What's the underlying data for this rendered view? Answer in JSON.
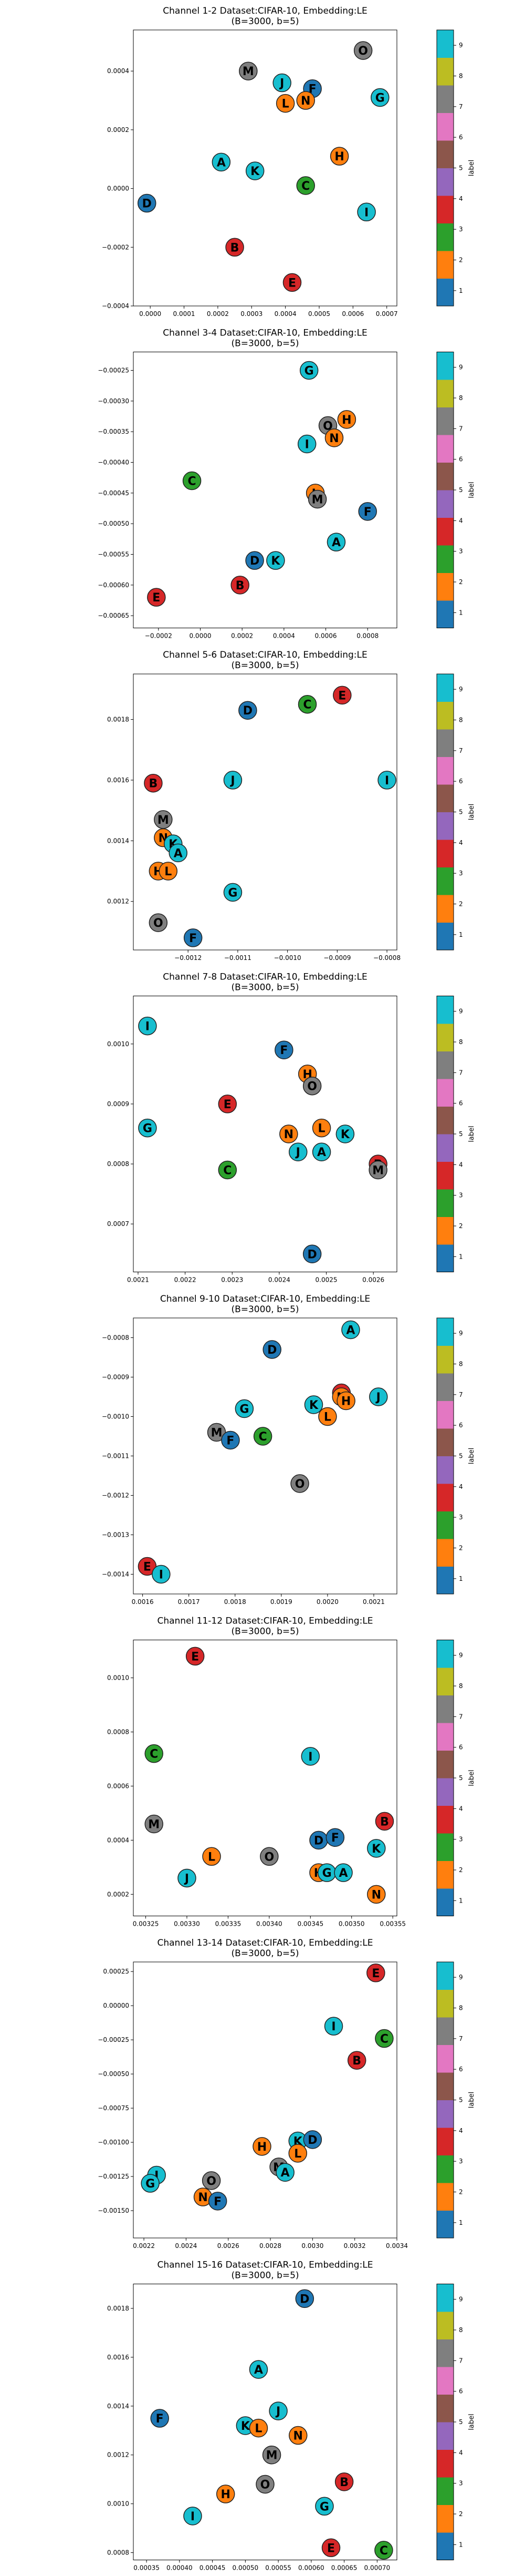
{
  "colors": {
    "label_colors": [
      "#1f77b4",
      "#ff7f0e",
      "#2ca02c",
      "#d62728",
      "#9467bd",
      "#8c564b",
      "#e377c2",
      "#7f7f7f",
      "#bcbd22",
      "#17becf"
    ],
    "point_colors": {
      "A": "#17becf",
      "B": "#d62728",
      "D": "#1f77b4",
      "E": "#d62728",
      "F": "#1f77b4",
      "G": "#17becf",
      "H": "#ff7f0e",
      "I": "#17becf",
      "J": "#17becf",
      "K": "#17becf",
      "L": "#ff7f0e",
      "M": "#7f7f7f",
      "N": "#ff7f0e",
      "O": "#7f7f7f",
      "C": "#2ca02c"
    }
  },
  "colorbar": {
    "label": "label",
    "ticks": [
      1,
      2,
      3,
      4,
      5,
      6,
      7,
      8,
      9
    ]
  },
  "chart_data": [
    {
      "type": "scatter",
      "title": "Channel 1-2 Dataset:CIFAR-10, Embedding:LE",
      "subtitle": "(B=3000, b=5)",
      "xlim": [
        -5e-05,
        0.00073
      ],
      "ylim": [
        -0.0004,
        0.00054
      ],
      "xticks": [
        0,
        0.0001,
        0.0002,
        0.0003,
        0.0004,
        0.0005,
        0.0006,
        0.0007
      ],
      "xtick_labels": [
        "0.0000",
        "0.0001",
        "0.0002",
        "0.0003",
        "0.0004",
        "0.0005",
        "0.0006",
        "0.0007"
      ],
      "yticks": [
        -0.0004,
        -0.0002,
        0,
        0.0002,
        0.0004
      ],
      "ytick_labels": [
        "−0.0004",
        "−0.0002",
        "0.0000",
        "0.0002",
        "0.0004"
      ],
      "points": [
        {
          "label": "O",
          "x": 0.00063,
          "y": 0.00047
        },
        {
          "label": "M",
          "x": 0.00029,
          "y": 0.0004
        },
        {
          "label": "J",
          "x": 0.00039,
          "y": 0.00036
        },
        {
          "label": "F",
          "x": 0.00048,
          "y": 0.00034
        },
        {
          "label": "G",
          "x": 0.00068,
          "y": 0.00031
        },
        {
          "label": "L",
          "x": 0.0004,
          "y": 0.00029
        },
        {
          "label": "N",
          "x": 0.00046,
          "y": 0.0003
        },
        {
          "label": "H",
          "x": 0.00056,
          "y": 0.00011
        },
        {
          "label": "A",
          "x": 0.00021,
          "y": 9e-05
        },
        {
          "label": "K",
          "x": 0.00031,
          "y": 6e-05
        },
        {
          "label": "C",
          "x": 0.00046,
          "y": 1e-05
        },
        {
          "label": "D",
          "x": -1e-05,
          "y": -5e-05
        },
        {
          "label": "I",
          "x": 0.00064,
          "y": -8e-05
        },
        {
          "label": "B",
          "x": 0.00025,
          "y": -0.0002
        },
        {
          "label": "E",
          "x": 0.00042,
          "y": -0.00032
        }
      ]
    },
    {
      "type": "scatter",
      "title": "Channel 3-4 Dataset:CIFAR-10, Embedding:LE",
      "subtitle": "(B=3000, b=5)",
      "xlim": [
        -0.00032,
        0.00094
      ],
      "ylim": [
        -0.00067,
        -0.00022
      ],
      "xticks": [
        -0.0002,
        0,
        0.0002,
        0.0004,
        0.0006,
        0.0008
      ],
      "xtick_labels": [
        "−0.0002",
        "0.0000",
        "0.0002",
        "0.0004",
        "0.0006",
        "0.0008"
      ],
      "yticks": [
        -0.00065,
        -0.0006,
        -0.00055,
        -0.0005,
        -0.00045,
        -0.0004,
        -0.00035,
        -0.0003,
        -0.00025
      ],
      "ytick_labels": [
        "−0.00065",
        "−0.00060",
        "−0.00055",
        "−0.00050",
        "−0.00045",
        "−0.00040",
        "−0.00035",
        "−0.00030",
        "−0.00025"
      ],
      "points": [
        {
          "label": "G",
          "x": 0.00052,
          "y": -0.00025
        },
        {
          "label": "H",
          "x": 0.0007,
          "y": -0.00033
        },
        {
          "label": "O",
          "x": 0.00061,
          "y": -0.00034
        },
        {
          "label": "N",
          "x": 0.00064,
          "y": -0.00036
        },
        {
          "label": "I",
          "x": 0.00051,
          "y": -0.00037
        },
        {
          "label": "C",
          "x": -4e-05,
          "y": -0.00043
        },
        {
          "label": "L",
          "x": 0.00055,
          "y": -0.00045
        },
        {
          "label": "M",
          "x": 0.00056,
          "y": -0.00046
        },
        {
          "label": "F",
          "x": 0.0008,
          "y": -0.00048
        },
        {
          "label": "A",
          "x": 0.00065,
          "y": -0.00053
        },
        {
          "label": "D",
          "x": 0.00026,
          "y": -0.00056
        },
        {
          "label": "K",
          "x": 0.00036,
          "y": -0.00056
        },
        {
          "label": "B",
          "x": 0.00019,
          "y": -0.0006
        },
        {
          "label": "E",
          "x": -0.00021,
          "y": -0.00062
        }
      ]
    },
    {
      "type": "scatter",
      "title": "Channel 5-6 Dataset:CIFAR-10, Embedding:LE",
      "subtitle": "(B=3000, b=5)",
      "xlim": [
        -0.00131,
        -0.00078
      ],
      "ylim": [
        0.00104,
        0.00195
      ],
      "xticks": [
        -0.0012,
        -0.0011,
        -0.001,
        -0.0009,
        -0.0008
      ],
      "xtick_labels": [
        "−0.0012",
        "−0.0011",
        "−0.0010",
        "−0.0009",
        "−0.0008"
      ],
      "yticks": [
        0.0012,
        0.0014,
        0.0016,
        0.0018
      ],
      "ytick_labels": [
        "0.0012",
        "0.0014",
        "0.0016",
        "0.0018"
      ],
      "points": [
        {
          "label": "E",
          "x": -0.00089,
          "y": 0.00188
        },
        {
          "label": "C",
          "x": -0.00096,
          "y": 0.00185
        },
        {
          "label": "D",
          "x": -0.00108,
          "y": 0.00183
        },
        {
          "label": "B",
          "x": -0.00127,
          "y": 0.00159
        },
        {
          "label": "J",
          "x": -0.00111,
          "y": 0.0016
        },
        {
          "label": "I",
          "x": -0.0008,
          "y": 0.0016
        },
        {
          "label": "M",
          "x": -0.00125,
          "y": 0.00147
        },
        {
          "label": "N",
          "x": -0.00125,
          "y": 0.00141
        },
        {
          "label": "K",
          "x": -0.00123,
          "y": 0.00139
        },
        {
          "label": "A",
          "x": -0.00122,
          "y": 0.00136
        },
        {
          "label": "H",
          "x": -0.00126,
          "y": 0.0013
        },
        {
          "label": "L",
          "x": -0.00124,
          "y": 0.0013
        },
        {
          "label": "G",
          "x": -0.00111,
          "y": 0.00123
        },
        {
          "label": "O",
          "x": -0.00126,
          "y": 0.00113
        },
        {
          "label": "F",
          "x": -0.00119,
          "y": 0.00108
        }
      ]
    },
    {
      "type": "scatter",
      "title": "Channel 7-8 Dataset:CIFAR-10, Embedding:LE",
      "subtitle": "(B=3000, b=5)",
      "xlim": [
        0.00209,
        0.00265
      ],
      "ylim": [
        0.00062,
        0.00108
      ],
      "xticks": [
        0.0021,
        0.0022,
        0.0023,
        0.0024,
        0.0025,
        0.0026
      ],
      "xtick_labels": [
        "0.0021",
        "0.0022",
        "0.0023",
        "0.0024",
        "0.0025",
        "0.0026"
      ],
      "yticks": [
        0.0007,
        0.0008,
        0.0009,
        0.001
      ],
      "ytick_labels": [
        "0.0007",
        "0.0008",
        "0.0009",
        "0.0010"
      ],
      "points": [
        {
          "label": "I",
          "x": 0.00212,
          "y": 0.00103
        },
        {
          "label": "F",
          "x": 0.00241,
          "y": 0.00099
        },
        {
          "label": "H",
          "x": 0.00246,
          "y": 0.00095
        },
        {
          "label": "O",
          "x": 0.00247,
          "y": 0.00093
        },
        {
          "label": "E",
          "x": 0.00229,
          "y": 0.0009
        },
        {
          "label": "G",
          "x": 0.00212,
          "y": 0.00086
        },
        {
          "label": "N",
          "x": 0.00242,
          "y": 0.00085
        },
        {
          "label": "L",
          "x": 0.00249,
          "y": 0.00086
        },
        {
          "label": "K",
          "x": 0.00254,
          "y": 0.00085
        },
        {
          "label": "J",
          "x": 0.00244,
          "y": 0.00082
        },
        {
          "label": "A",
          "x": 0.00249,
          "y": 0.00082
        },
        {
          "label": "B",
          "x": 0.00261,
          "y": 0.0008
        },
        {
          "label": "M",
          "x": 0.00261,
          "y": 0.00079
        },
        {
          "label": "C",
          "x": 0.00229,
          "y": 0.00079
        },
        {
          "label": "D",
          "x": 0.00247,
          "y": 0.00065
        }
      ]
    },
    {
      "type": "scatter",
      "title": "Channel 9-10 Dataset:CIFAR-10, Embedding:LE",
      "subtitle": "(B=3000, b=5)",
      "xlim": [
        0.00158,
        0.00215
      ],
      "ylim": [
        -0.00145,
        -0.00075
      ],
      "xticks": [
        0.0016,
        0.0017,
        0.0018,
        0.0019,
        0.002,
        0.0021
      ],
      "xtick_labels": [
        "0.0016",
        "0.0017",
        "0.0018",
        "0.0019",
        "0.0020",
        "0.0021"
      ],
      "yticks": [
        -0.0014,
        -0.0013,
        -0.0012,
        -0.0011,
        -0.001,
        -0.0009,
        -0.0008
      ],
      "ytick_labels": [
        "−0.0014",
        "−0.0013",
        "−0.0012",
        "−0.0011",
        "−0.0010",
        "−0.0009",
        "−0.0008"
      ],
      "points": [
        {
          "label": "A",
          "x": 0.00205,
          "y": -0.00078
        },
        {
          "label": "D",
          "x": 0.00188,
          "y": -0.00083
        },
        {
          "label": "E",
          "x": 0.00203,
          "y": -0.00094
        },
        {
          "label": "N",
          "x": 0.00203,
          "y": -0.00095
        },
        {
          "label": "H",
          "x": 0.00204,
          "y": -0.00096
        },
        {
          "label": "J",
          "x": 0.00211,
          "y": -0.00095
        },
        {
          "label": "K",
          "x": 0.00197,
          "y": -0.00097
        },
        {
          "label": "G",
          "x": 0.00182,
          "y": -0.00098
        },
        {
          "label": "L",
          "x": 0.002,
          "y": -0.001
        },
        {
          "label": "M",
          "x": 0.00176,
          "y": -0.00104
        },
        {
          "label": "C",
          "x": 0.00186,
          "y": -0.00105
        },
        {
          "label": "F",
          "x": 0.00179,
          "y": -0.00106
        },
        {
          "label": "O",
          "x": 0.00194,
          "y": -0.00117
        },
        {
          "label": "E",
          "x": 0.00161,
          "y": -0.00138
        },
        {
          "label": "I",
          "x": 0.00164,
          "y": -0.0014
        }
      ]
    },
    {
      "type": "scatter",
      "title": "Channel 11-12 Dataset:CIFAR-10, Embedding:LE",
      "subtitle": "(B=3000, b=5)",
      "xlim": [
        0.003235,
        0.003555
      ],
      "ylim": [
        0.00012,
        0.00114
      ],
      "xticks": [
        0.00325,
        0.0033,
        0.00335,
        0.0034,
        0.00345,
        0.0035,
        0.00355
      ],
      "xtick_labels": [
        "0.00325",
        "0.00330",
        "0.00335",
        "0.00340",
        "0.00345",
        "0.00350",
        "0.00355"
      ],
      "yticks": [
        0.0002,
        0.0004,
        0.0006,
        0.0008,
        0.001
      ],
      "ytick_labels": [
        "0.0002",
        "0.0004",
        "0.0006",
        "0.0008",
        "0.0010"
      ],
      "points": [
        {
          "label": "E",
          "x": 0.00331,
          "y": 0.00108
        },
        {
          "label": "C",
          "x": 0.00326,
          "y": 0.00072
        },
        {
          "label": "I",
          "x": 0.00345,
          "y": 0.00071
        },
        {
          "label": "M",
          "x": 0.00326,
          "y": 0.00046
        },
        {
          "label": "B",
          "x": 0.00354,
          "y": 0.00047
        },
        {
          "label": "D",
          "x": 0.00346,
          "y": 0.0004
        },
        {
          "label": "F",
          "x": 0.00348,
          "y": 0.00041
        },
        {
          "label": "K",
          "x": 0.00353,
          "y": 0.00037
        },
        {
          "label": "L",
          "x": 0.00333,
          "y": 0.00034
        },
        {
          "label": "O",
          "x": 0.0034,
          "y": 0.00034
        },
        {
          "label": "H",
          "x": 0.00346,
          "y": 0.00028
        },
        {
          "label": "G",
          "x": 0.00347,
          "y": 0.00028
        },
        {
          "label": "A",
          "x": 0.00349,
          "y": 0.00028
        },
        {
          "label": "J",
          "x": 0.0033,
          "y": 0.00026
        },
        {
          "label": "N",
          "x": 0.00353,
          "y": 0.0002
        }
      ]
    },
    {
      "type": "scatter",
      "title": "Channel 13-14 Dataset:CIFAR-10, Embedding:LE",
      "subtitle": "(B=3000, b=5)",
      "xlim": [
        0.00215,
        0.0034
      ],
      "ylim": [
        -0.0017,
        0.00032
      ],
      "xticks": [
        0.0022,
        0.0024,
        0.0026,
        0.0028,
        0.003,
        0.0032,
        0.0034
      ],
      "xtick_labels": [
        "0.0022",
        "0.0024",
        "0.0026",
        "0.0028",
        "0.0030",
        "0.0032",
        "0.0034"
      ],
      "yticks": [
        -0.0015,
        -0.00125,
        -0.001,
        -0.00075,
        -0.0005,
        -0.00025,
        0,
        0.00025
      ],
      "ytick_labels": [
        "−0.00150",
        "−0.00125",
        "−0.00100",
        "−0.00075",
        "−0.00050",
        "−0.00025",
        "0.00000",
        "0.00025"
      ],
      "points": [
        {
          "label": "E",
          "x": 0.0033,
          "y": 0.00024
        },
        {
          "label": "I",
          "x": 0.0031,
          "y": -0.00015
        },
        {
          "label": "C",
          "x": 0.00334,
          "y": -0.00024
        },
        {
          "label": "B",
          "x": 0.00321,
          "y": -0.0004
        },
        {
          "label": "K",
          "x": 0.00293,
          "y": -0.00099
        },
        {
          "label": "D",
          "x": 0.003,
          "y": -0.00098
        },
        {
          "label": "H",
          "x": 0.00276,
          "y": -0.00103
        },
        {
          "label": "L",
          "x": 0.00293,
          "y": -0.00108
        },
        {
          "label": "M",
          "x": 0.00284,
          "y": -0.00118
        },
        {
          "label": "A",
          "x": 0.00287,
          "y": -0.00122
        },
        {
          "label": "J",
          "x": 0.00226,
          "y": -0.00124
        },
        {
          "label": "G",
          "x": 0.00223,
          "y": -0.0013
        },
        {
          "label": "O",
          "x": 0.00252,
          "y": -0.00128
        },
        {
          "label": "N",
          "x": 0.00248,
          "y": -0.0014
        },
        {
          "label": "F",
          "x": 0.00255,
          "y": -0.00143
        }
      ]
    },
    {
      "type": "scatter",
      "title": "Channel 15-16 Dataset:CIFAR-10, Embedding:LE",
      "subtitle": "(B=3000, b=5)",
      "xlim": [
        0.00033,
        0.00073
      ],
      "ylim": [
        0.00077,
        0.0019
      ],
      "xticks": [
        0.00035,
        0.0004,
        0.00045,
        0.0005,
        0.00055,
        0.0006,
        0.00065,
        0.0007
      ],
      "xtick_labels": [
        "0.00035",
        "0.00040",
        "0.00045",
        "0.00050",
        "0.00055",
        "0.00060",
        "0.00065",
        "0.00070"
      ],
      "yticks": [
        0.0008,
        0.001,
        0.0012,
        0.0014,
        0.0016,
        0.0018
      ],
      "ytick_labels": [
        "0.0008",
        "0.0010",
        "0.0012",
        "0.0014",
        "0.0016",
        "0.0018"
      ],
      "points": [
        {
          "label": "D",
          "x": 0.00059,
          "y": 0.00184
        },
        {
          "label": "A",
          "x": 0.00052,
          "y": 0.00155
        },
        {
          "label": "J",
          "x": 0.00055,
          "y": 0.00138
        },
        {
          "label": "F",
          "x": 0.00037,
          "y": 0.00135
        },
        {
          "label": "K",
          "x": 0.0005,
          "y": 0.00132
        },
        {
          "label": "L",
          "x": 0.00052,
          "y": 0.00131
        },
        {
          "label": "N",
          "x": 0.00058,
          "y": 0.00128
        },
        {
          "label": "M",
          "x": 0.00054,
          "y": 0.0012
        },
        {
          "label": "B",
          "x": 0.00065,
          "y": 0.00109
        },
        {
          "label": "O",
          "x": 0.00053,
          "y": 0.00108
        },
        {
          "label": "H",
          "x": 0.00047,
          "y": 0.00104
        },
        {
          "label": "G",
          "x": 0.00062,
          "y": 0.00099
        },
        {
          "label": "I",
          "x": 0.00042,
          "y": 0.00095
        },
        {
          "label": "E",
          "x": 0.00063,
          "y": 0.00082
        },
        {
          "label": "C",
          "x": 0.00071,
          "y": 0.00081
        }
      ]
    }
  ]
}
